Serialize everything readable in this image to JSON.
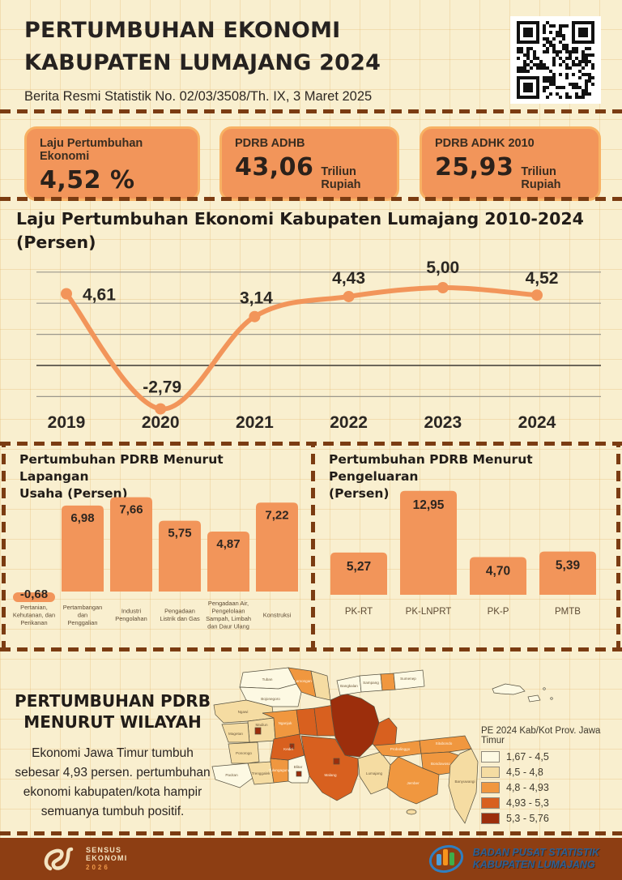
{
  "colors": {
    "background": "#f9efcf",
    "accent_orange": "#f2955a",
    "card_border": "#f8b163",
    "dash_brown": "#7b3c12",
    "footer_bg": "#8d3e13",
    "text_dark": "#262220",
    "map_class_colors": [
      "#fdf9e3",
      "#f5dca2",
      "#f0973f",
      "#d8601f",
      "#9c2e0c"
    ]
  },
  "header": {
    "title_line1": "PERTUMBUHAN EKONOMI",
    "title_line2": "KABUPATEN LUMAJANG 2024",
    "subtitle": "Berita Resmi Statistik No. 02/03/3508/Th. IX, 3 Maret 2025"
  },
  "stats": [
    {
      "label": "Laju Pertumbuhan Ekonomi",
      "value": "4,52 %",
      "unit": ""
    },
    {
      "label": "PDRB ADHB",
      "value": "43,06",
      "unit": "Triliun Rupiah"
    },
    {
      "label": "PDRB ADHK 2010",
      "value": "25,93",
      "unit": "Triliun Rupiah"
    }
  ],
  "line_section": {
    "title_line1": "Laju Pertumbuhan Ekonomi Kabupaten Lumajang 2010-2024",
    "title_line2": "(Persen)"
  },
  "bar_sections": [
    {
      "title_line1": "Pertumbuhan PDRB Menurut Lapangan",
      "title_line2": "Usaha (Persen)"
    },
    {
      "title_line1": "Pertumbuhan PDRB Menurut Pengeluaran",
      "title_line2": "(Persen)"
    }
  ],
  "chart_data": [
    {
      "type": "line",
      "title": "Laju Pertumbuhan Ekonomi Kabupaten Lumajang 2010-2024 (Persen)",
      "x": [
        "2019",
        "2020",
        "2021",
        "2022",
        "2023",
        "2024"
      ],
      "values": [
        4.61,
        -2.79,
        3.14,
        4.43,
        5.0,
        4.52
      ],
      "value_labels": [
        "4,61",
        "-2,79",
        "3,14",
        "4,43",
        "5,00",
        "4,52"
      ],
      "ylim": [
        -4.5,
        6.5
      ],
      "gridlines": [
        6,
        4,
        2,
        0,
        -2
      ],
      "grid": "horizontal-only",
      "legend_position": "none"
    },
    {
      "type": "bar",
      "title": "Pertumbuhan PDRB Menurut Lapangan Usaha (Persen)",
      "categories": [
        "Pertanian, Kehutanan, dan Perikanan",
        "Pertambangan dan Penggalian",
        "Industri Pengolahan",
        "Pengadaan Listrik dan Gas",
        "Pengadaan Air, Pengelolaan Sampah, Limbah dan Daur Ulang",
        "Konstruksi"
      ],
      "category_lines": [
        [
          "Pertanian,",
          "Kehutanan, dan",
          "Perikanan"
        ],
        [
          "Pertambangan",
          "dan",
          "Penggalian"
        ],
        [
          "Industri",
          "Pengolahan"
        ],
        [
          "Pengadaan",
          "Listrik dan Gas"
        ],
        [
          "Pengadaan Air,",
          "Pengelolaan",
          "Sampah, Limbah",
          "dan Daur Ulang"
        ],
        [
          "Konstruksi"
        ]
      ],
      "values": [
        -0.68,
        6.98,
        7.66,
        5.75,
        4.87,
        7.22
      ],
      "value_labels": [
        "-0,68",
        "6,98",
        "7,66",
        "5,75",
        "4,87",
        "7,22"
      ]
    },
    {
      "type": "bar",
      "title": "Pertumbuhan PDRB Menurut Pengeluaran (Persen)",
      "categories": [
        "PK-RT",
        "PK-LNPRT",
        "PK-P",
        "PMTB"
      ],
      "category_lines": [
        [
          "PK-RT"
        ],
        [
          "PK-LNPRT"
        ],
        [
          "PK-P"
        ],
        [
          "PMTB"
        ]
      ],
      "values": [
        5.27,
        12.95,
        4.7,
        5.39
      ],
      "value_labels": [
        "5,27",
        "12,95",
        "4,70",
        "5,39"
      ]
    }
  ],
  "map_section": {
    "heading_line1": "PERTUMBUHAN PDRB",
    "heading_line2": "MENURUT WILAYAH",
    "description": "Ekonomi Jawa Timur tumbuh sebesar 4,93 persen. pertumbuhan ekonomi kabupaten/kota hampir semuanya tumbuh positif.",
    "legend": {
      "title": "PE 2024 Kab/Kot Prov. Jawa Timur",
      "classes": [
        {
          "range": "1,67 - 4,5",
          "color": "#fdf9e3"
        },
        {
          "range": "4,5 - 4,8",
          "color": "#f5dca2"
        },
        {
          "range": "4,8 - 4,93",
          "color": "#f0973f"
        },
        {
          "range": "4,93 - 5,3",
          "color": "#d8601f"
        },
        {
          "range": "5,3 - 5,76",
          "color": "#9c2e0c"
        }
      ]
    },
    "regions": [
      {
        "name": "Tuban",
        "class": 0
      },
      {
        "name": "Lamongan",
        "class": 2
      },
      {
        "name": "Gresik",
        "class": 1
      },
      {
        "name": "Bojonegoro",
        "class": 0
      },
      {
        "name": "Ngawi",
        "class": 1
      },
      {
        "name": "Madiun",
        "class": 1
      },
      {
        "name": "Magetan",
        "class": 1
      },
      {
        "name": "Kota Madiun",
        "class": 4
      },
      {
        "name": "Ponorogo",
        "class": 1
      },
      {
        "name": "Pacitan",
        "class": 0
      },
      {
        "name": "Trenggalek",
        "class": 1
      },
      {
        "name": "Tulungagung",
        "class": 2
      },
      {
        "name": "Nganjuk",
        "class": 2
      },
      {
        "name": "Kediri",
        "class": 3
      },
      {
        "name": "Kota Kediri",
        "class": 4
      },
      {
        "name": "Jombang",
        "class": 3
      },
      {
        "name": "Mojokerto",
        "class": 3
      },
      {
        "name": "Surabaya",
        "class": 4
      },
      {
        "name": "Pasuruan",
        "class": 3
      },
      {
        "name": "Malang",
        "class": 3
      },
      {
        "name": "Kota Malang",
        "class": 4
      },
      {
        "name": "Blitar",
        "class": 0
      },
      {
        "name": "Kota Blitar",
        "class": 4
      },
      {
        "name": "Lumajang",
        "class": 1
      },
      {
        "name": "Probolinggo",
        "class": 2
      },
      {
        "name": "Situbondo",
        "class": 2
      },
      {
        "name": "Bondowoso",
        "class": 2
      },
      {
        "name": "Jember",
        "class": 2
      },
      {
        "name": "Banyuwangi",
        "class": 1
      },
      {
        "name": "Bangkalan",
        "class": 0
      },
      {
        "name": "Sampang",
        "class": 0
      },
      {
        "name": "Pamekasan",
        "class": 2
      },
      {
        "name": "Sumenep",
        "class": 0
      }
    ]
  },
  "footer": {
    "sensus_line1": "SENSUS",
    "sensus_line2": "EKONOMI",
    "sensus_year": "2026",
    "bps_line1": "BADAN PUSAT STATISTIK",
    "bps_line2": "KABUPATEN LUMAJANG"
  }
}
